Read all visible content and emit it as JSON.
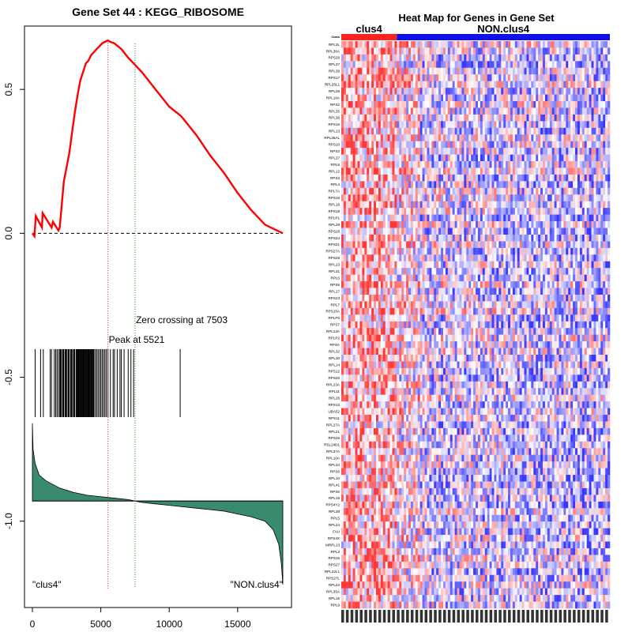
{
  "chart_data": [
    {
      "type": "line",
      "title": "Gene Set  44 : KEGG_RIBOSOME",
      "xlim": [
        0,
        18300
      ],
      "ylim": [
        -1.3,
        0.72
      ],
      "x_ticks": [
        0,
        5000,
        10000,
        15000
      ],
      "x_tick_labels": [
        "0",
        "5000",
        "10000",
        "15000"
      ],
      "y_ticks": [
        0.5,
        0.0,
        -0.5,
        -1.0
      ],
      "y_tick_labels": [
        "0.5",
        "0.0",
        "-0.5",
        "-1.0"
      ],
      "enrichment_curve": {
        "color": "#ff0000",
        "x": [
          0,
          150,
          250,
          700,
          750,
          1400,
          1500,
          1900,
          2000,
          2300,
          2500,
          2700,
          2900,
          3100,
          3300,
          3500,
          3700,
          3900,
          4100,
          4300,
          4500,
          4700,
          4900,
          5100,
          5300,
          5521,
          5700,
          6000,
          6500,
          7000,
          7503,
          8000,
          9000,
          10000,
          10800,
          11000,
          12000,
          13000,
          14000,
          15000,
          16000,
          17000,
          18300
        ],
        "y": [
          0.0,
          -0.01,
          0.06,
          0.02,
          0.07,
          0.02,
          0.04,
          0.01,
          0.02,
          0.18,
          0.23,
          0.28,
          0.35,
          0.42,
          0.48,
          0.53,
          0.56,
          0.59,
          0.6,
          0.62,
          0.63,
          0.64,
          0.65,
          0.66,
          0.665,
          0.67,
          0.665,
          0.66,
          0.64,
          0.61,
          0.585,
          0.56,
          0.5,
          0.44,
          0.41,
          0.4,
          0.34,
          0.27,
          0.21,
          0.14,
          0.08,
          0.03,
          0.0
        ]
      },
      "zero_line": {
        "y": 0.0,
        "style": "dashed",
        "color": "#000000"
      },
      "peak": {
        "x": 5521,
        "label": "Peak at 5521",
        "color": "#ff0000"
      },
      "zero_crossing": {
        "x": 7503,
        "label": "Zero crossing at 7503",
        "color": "#008800"
      },
      "hits": [
        200,
        600,
        800,
        1300,
        1400,
        1600,
        1700,
        1800,
        1900,
        2000,
        2050,
        2100,
        2200,
        2250,
        2300,
        2400,
        2450,
        2500,
        2600,
        2650,
        2700,
        2800,
        2850,
        2900,
        3000,
        3050,
        3100,
        3200,
        3250,
        3300,
        3350,
        3400,
        3450,
        3500,
        3550,
        3600,
        3650,
        3700,
        3750,
        3800,
        3850,
        3900,
        3950,
        4000,
        4050,
        4100,
        4150,
        4200,
        4250,
        4300,
        4350,
        4400,
        4450,
        4500,
        4600,
        4700,
        4800,
        4900,
        5000,
        5100,
        5200,
        5300,
        5400,
        5521,
        5700,
        5900,
        6000,
        6200,
        6400,
        6500,
        6700,
        7000,
        7200,
        7400,
        10800
      ],
      "ranked_metric": {
        "color": "#3a8a6e",
        "baseline": -0.93,
        "x": [
          0,
          50,
          200,
          500,
          1000,
          2000,
          3000,
          4000,
          5000,
          6000,
          7000,
          7503,
          8000,
          9000,
          10000,
          11000,
          12000,
          13000,
          14000,
          15000,
          16000,
          17000,
          17600,
          18000,
          18200,
          18300
        ],
        "y": [
          -0.66,
          -0.75,
          -0.8,
          -0.84,
          -0.86,
          -0.885,
          -0.9,
          -0.91,
          -0.915,
          -0.92,
          -0.925,
          -0.93,
          -0.935,
          -0.94,
          -0.945,
          -0.95,
          -0.955,
          -0.96,
          -0.965,
          -0.975,
          -0.985,
          -1.0,
          -1.03,
          -1.08,
          -1.15,
          -1.22
        ]
      },
      "left_label": "\"clus4\"",
      "right_label": "\"NON.clus4\""
    },
    {
      "type": "heatmap",
      "title": "Heat Map for Genes in Gene Set",
      "groups": [
        {
          "name": "clus4",
          "color": "#ff2020",
          "columns": 24
        },
        {
          "name": "NON.clus4",
          "color": "#1010ee",
          "columns": 92
        }
      ],
      "class_row_label": "Class",
      "rows": [
        "RPL3L",
        "RPL36A",
        "RPS26",
        "RPL37",
        "RPL39",
        "RPS17",
        "RPL26L1",
        "RPL28",
        "RPL18A",
        "RPS2",
        "RPL35",
        "RPL36",
        "RPS16",
        "RPL13",
        "RPL36AL",
        "RPS10",
        "RPS3",
        "RPL27",
        "RPL8",
        "RPL12",
        "RPS3",
        "RPL4",
        "RPL7A",
        "RPS19",
        "RPL18",
        "RPS18",
        "RPLP1",
        "RPL29",
        "RPS28",
        "RPS24",
        "RPS21",
        "RPS27A",
        "RPS28",
        "RPL23",
        "RPL31",
        "RPL6",
        "RPS9",
        "RPL17",
        "RPS23",
        "RPL7",
        "RPS15A",
        "RPLP0",
        "RPS7",
        "RPL13A",
        "RPLP2",
        "RPSA",
        "RPL32",
        "RPL30",
        "RPL14",
        "RPS12",
        "RPS20",
        "RPL23A",
        "RPL11",
        "RPL26",
        "RPS13",
        "UBA52",
        "RPS11",
        "RPL27A",
        "RPL21",
        "RPS25",
        "RSL24D1",
        "RPL37A",
        "RPL10A",
        "RPL34",
        "RPS8",
        "RPL10",
        "RPL41",
        "RPS6",
        "RPL19",
        "RPS4Y2",
        "RPL38",
        "RPL5",
        "RPL24",
        "FAU",
        "RPS4X",
        "MRPL13",
        "RPL3",
        "RPS15",
        "RPS27",
        "RPL22L1",
        "RPS27L",
        "RPL22",
        "RPL35A",
        "RPL15",
        "RPL9"
      ],
      "color_low": "#0000ff",
      "color_mid": "#ffffff",
      "color_high": "#ff0000"
    }
  ]
}
